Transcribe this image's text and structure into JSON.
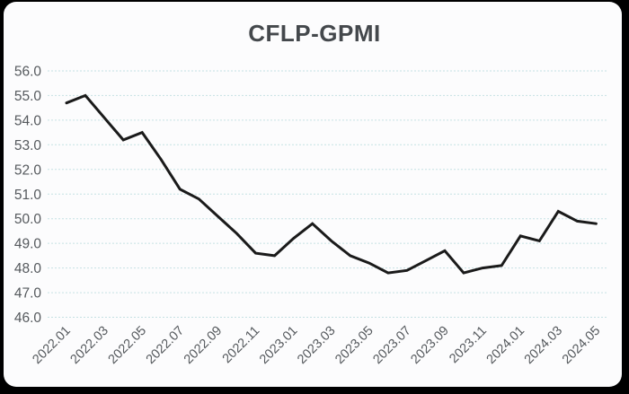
{
  "chart_data": {
    "type": "line",
    "title": "CFLP-GPMI",
    "x": [
      "2022.01",
      "2022.02",
      "2022.03",
      "2022.04",
      "2022.05",
      "2022.06",
      "2022.07",
      "2022.08",
      "2022.09",
      "2022.10",
      "2022.11",
      "2022.12",
      "2023.01",
      "2023.02",
      "2023.03",
      "2023.04",
      "2023.05",
      "2023.06",
      "2023.07",
      "2023.08",
      "2023.09",
      "2023.10",
      "2023.11",
      "2023.12",
      "2024.01",
      "2024.02",
      "2024.03",
      "2024.04",
      "2024.05"
    ],
    "values": [
      54.7,
      55.0,
      54.1,
      53.2,
      53.5,
      52.4,
      51.2,
      50.8,
      50.1,
      49.4,
      48.6,
      48.5,
      49.2,
      49.8,
      49.1,
      48.5,
      48.2,
      47.8,
      47.9,
      48.3,
      48.7,
      47.8,
      48.0,
      48.1,
      49.3,
      49.1,
      50.3,
      49.9,
      49.8
    ],
    "x_tick_labels": [
      "2022.01",
      "2022.03",
      "2022.05",
      "2022.07",
      "2022.09",
      "2022.11",
      "2023.01",
      "2023.03",
      "2023.05",
      "2023.07",
      "2023.09",
      "2023.11",
      "2024.01",
      "2024.03",
      "2024.05"
    ],
    "y_tick_labels": [
      "46.0",
      "47.0",
      "48.0",
      "49.0",
      "50.0",
      "51.0",
      "52.0",
      "53.0",
      "54.0",
      "55.0",
      "56.0"
    ],
    "ylim": [
      46.0,
      56.0
    ],
    "ytick_step": 1.0,
    "xlabel": "",
    "ylabel": "",
    "legend": "none",
    "grid": "horizontal-dashed",
    "colors": {
      "line": "#1a1a1a",
      "gridline": "#c5e1e3",
      "axis_label": "#55595d",
      "title": "#44484c",
      "card_background": "#fcfcfd",
      "page_background": "#000000"
    }
  }
}
